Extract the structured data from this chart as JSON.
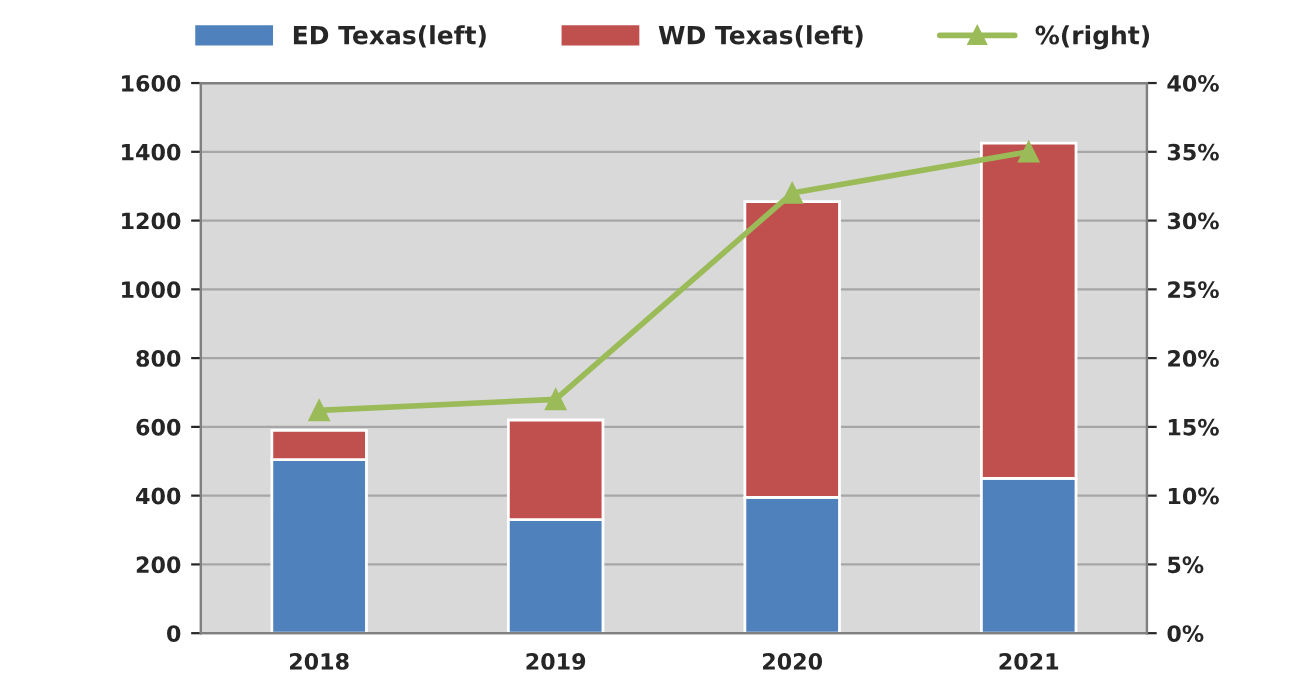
{
  "chart_data": {
    "type": "bar",
    "stacked": true,
    "categories": [
      "2018",
      "2019",
      "2020",
      "2021"
    ],
    "series": [
      {
        "name": "ED Texas(left)",
        "color": "#4f81bd",
        "values": [
          505,
          330,
          395,
          450
        ]
      },
      {
        "name": "WD Texas(left)",
        "color": "#c0504d",
        "values": [
          85,
          290,
          860,
          975
        ]
      },
      {
        "name": "%(right)",
        "type": "line",
        "axis": "y2",
        "color": "#9bbb59",
        "marker": "triangle",
        "values": [
          16.2,
          17.0,
          32.0,
          35.0
        ]
      }
    ],
    "ylim": [
      0,
      1600
    ],
    "yticks": [
      0,
      200,
      400,
      600,
      800,
      1000,
      1200,
      1400,
      1600
    ],
    "y2lim": [
      0,
      40
    ],
    "y2ticks": [
      {
        "value": 0,
        "label": "0%"
      },
      {
        "value": 5,
        "label": "5%"
      },
      {
        "value": 10,
        "label": "10%"
      },
      {
        "value": 15,
        "label": "15%"
      },
      {
        "value": 20,
        "label": "20%"
      },
      {
        "value": 25,
        "label": "25%"
      },
      {
        "value": 30,
        "label": "30%"
      },
      {
        "value": 35,
        "label": "35%"
      },
      {
        "value": 40,
        "label": "40%"
      }
    ],
    "grid": "y",
    "legend": "top"
  }
}
